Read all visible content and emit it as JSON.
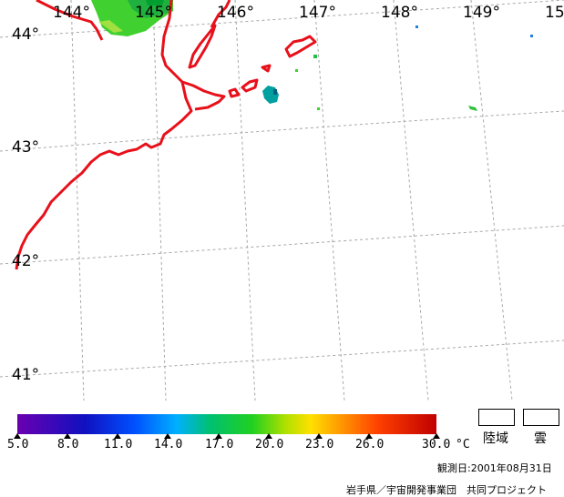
{
  "longitude_labels": [
    "144°",
    "145°",
    "146°",
    "147°",
    "148°",
    "149°",
    "15"
  ],
  "latitude_labels": [
    "44°",
    "43°",
    "42°",
    "41°"
  ],
  "colorbar": {
    "tick_labels": [
      "5.0",
      "8.0",
      "11.0",
      "14.0",
      "17.0",
      "20.0",
      "23.0",
      "26.0",
      "30.0"
    ],
    "unit": "°C"
  },
  "legend": {
    "land_label": "陸域",
    "cloud_label": "雲"
  },
  "observation_date": "観測日:2001年08月31日",
  "credit": "岩手県／宇宙開発事業団　共同プロジェクト",
  "colors": {
    "coastline": "#e8101a",
    "grid": "#a8a8a8",
    "sst_green": "#40d030",
    "sst_teal": "#00a0a0"
  }
}
